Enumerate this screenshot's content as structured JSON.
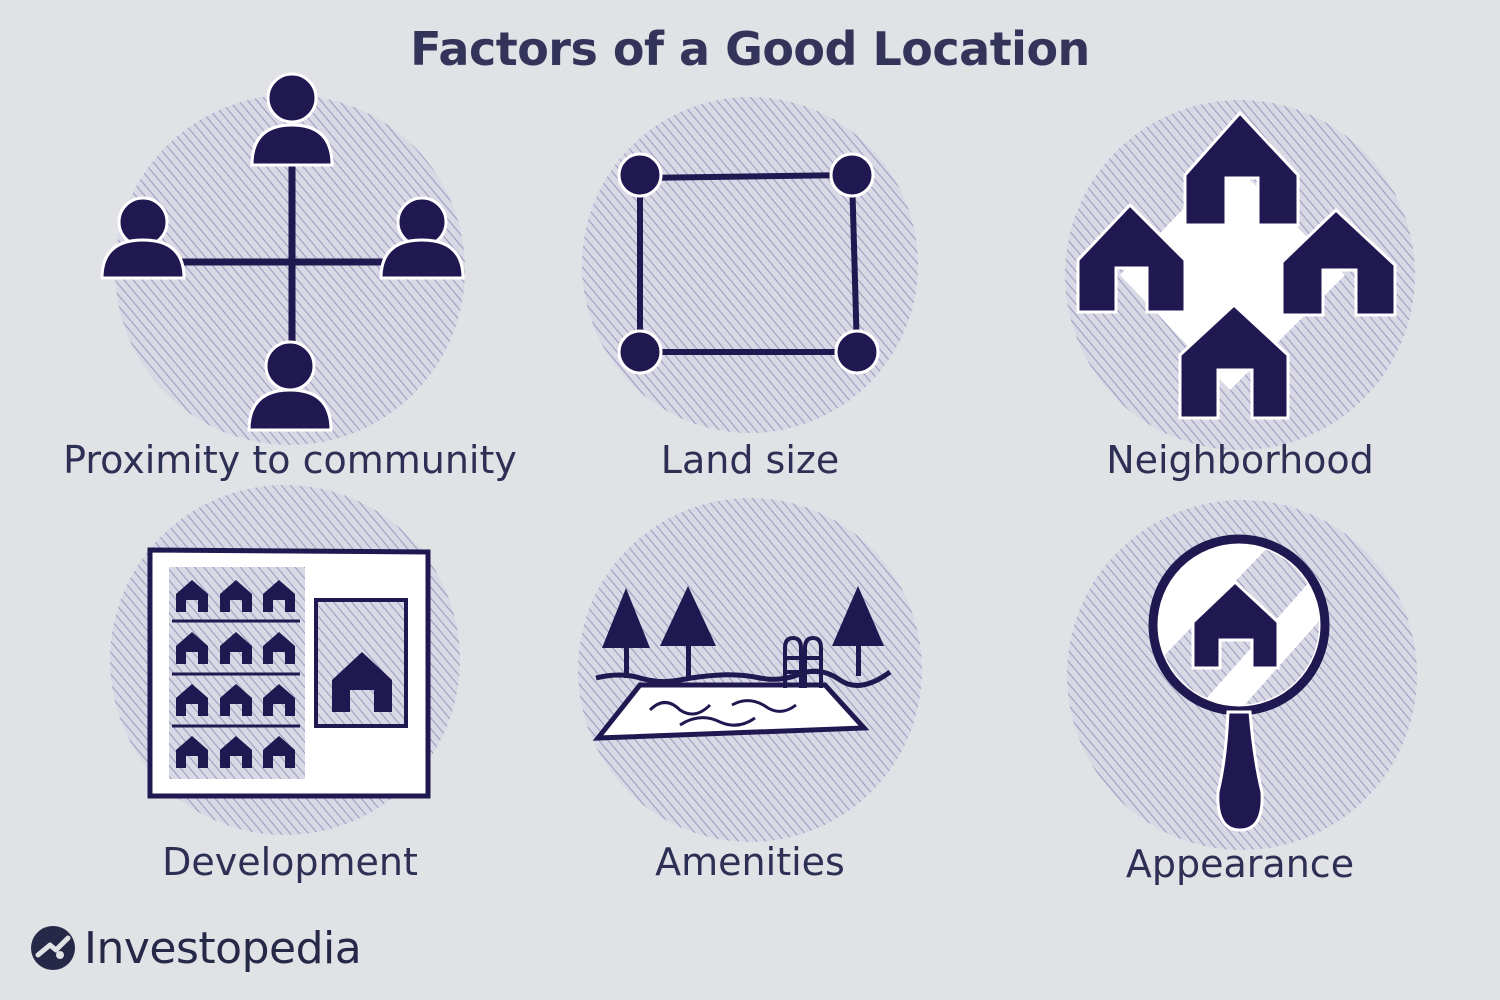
{
  "title": "Factors of a Good Location",
  "colors": {
    "background": "#e1e2e6",
    "ink": "#201850",
    "hatch": "#b8b8d2"
  },
  "factors": [
    {
      "label": "Proximity to community",
      "icon": "people-network-icon"
    },
    {
      "label": "Land size",
      "icon": "land-plot-icon"
    },
    {
      "label": "Neighborhood",
      "icon": "houses-cluster-icon"
    },
    {
      "label": "Development",
      "icon": "development-plan-icon"
    },
    {
      "label": "Amenities",
      "icon": "pool-trees-icon"
    },
    {
      "label": "Appearance",
      "icon": "magnifier-house-icon"
    }
  ],
  "brand": {
    "name": "Investopedia",
    "icon": "investopedia-logo-icon"
  }
}
